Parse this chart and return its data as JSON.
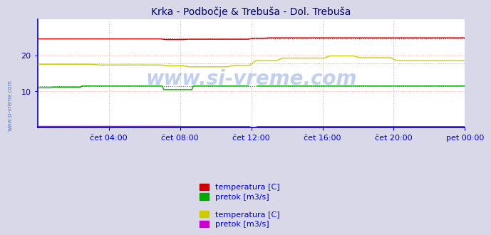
{
  "title": "Krka - Podbočje & Trebuša - Dol. Trebuša",
  "background_color": "#d8d8e8",
  "plot_bg_color": "#ffffff",
  "xlim": [
    0,
    288
  ],
  "ylim": [
    0,
    30
  ],
  "yticks": [
    10,
    20
  ],
  "xtick_labels": [
    "čet 04:00",
    "čet 08:00",
    "čet 12:00",
    "čet 16:00",
    "čet 20:00",
    "pet 00:00"
  ],
  "xtick_positions": [
    48,
    96,
    144,
    192,
    240,
    288
  ],
  "hgrid_color": "#ffaaaa",
  "vgrid_color": "#aaaaff",
  "series_colors": {
    "krka_temp": "#cc0000",
    "krka_pretok": "#00aa00",
    "trebusa_temp": "#cccc00",
    "trebusa_pretok": "#cc00cc"
  },
  "legend_groups": [
    [
      {
        "label": "temperatura [C]",
        "color": "#cc0000"
      },
      {
        "label": "pretok [m3/s]",
        "color": "#00aa00"
      }
    ],
    [
      {
        "label": "temperatura [C]",
        "color": "#cccc00"
      },
      {
        "label": "pretok [m3/s]",
        "color": "#cc00cc"
      }
    ]
  ],
  "watermark": "www.si-vreme.com",
  "watermark_color": "#3366cc",
  "watermark_alpha": 0.3,
  "title_color": "#000066",
  "axis_color": "#0000cc",
  "tick_color": "#0000cc",
  "tick_fontsize": 8,
  "title_fontsize": 10
}
